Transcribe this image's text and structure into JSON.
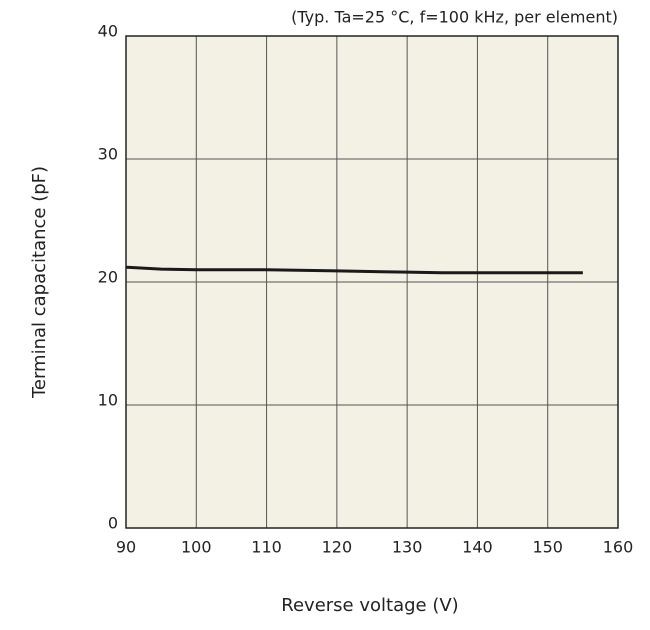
{
  "chart_data": {
    "type": "line",
    "annotation": "(Typ. Ta=25 °C, f=100 kHz, per element)",
    "xlabel": "Reverse voltage (V)",
    "ylabel": "Terminal capacitance (pF)",
    "x": [
      90,
      95,
      100,
      110,
      120,
      130,
      135,
      140,
      150,
      155
    ],
    "series": [
      {
        "name": null,
        "color": "#1a1a1a",
        "values": [
          21.2,
          21.05,
          21.0,
          21.0,
          20.9,
          20.8,
          20.75,
          20.75,
          20.75,
          20.75
        ]
      }
    ],
    "xlim": [
      90,
      160
    ],
    "xticks": [
      90,
      100,
      110,
      120,
      130,
      140,
      150,
      160
    ],
    "ylim": [
      0,
      40
    ],
    "yticks": [
      0,
      10,
      20,
      30,
      40
    ],
    "grid": true
  }
}
